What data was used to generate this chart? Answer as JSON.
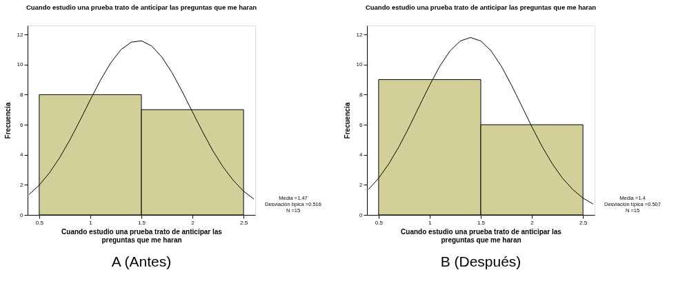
{
  "chart_data": [
    {
      "type": "histogram",
      "title": "Cuando estudio una prueba trato de anticipar las preguntas que me haran",
      "xlabel": "Cuando estudio una prueba trato de anticipar las\npreguntas que me haran",
      "ylabel": "Frecuencia",
      "bins": [
        0.5,
        1.5,
        2.5
      ],
      "series": [
        {
          "color": "#d3cf99",
          "values": [
            8,
            7
          ]
        },
        {
          "type": "line",
          "color": "#000000",
          "x": [
            0.4,
            0.5,
            0.6,
            0.7,
            0.8,
            0.9,
            1.0,
            1.1,
            1.2,
            1.3,
            1.4,
            1.5,
            1.6,
            1.7,
            1.8,
            1.9,
            2.0,
            2.1,
            2.2,
            2.3,
            2.4,
            2.5,
            2.6
          ],
          "values": [
            1.35,
            1.98,
            2.8,
            3.81,
            4.99,
            6.3,
            7.66,
            8.97,
            10.12,
            10.99,
            11.49,
            11.58,
            11.24,
            10.5,
            9.46,
            8.2,
            6.85,
            5.51,
            4.26,
            3.18,
            2.29,
            1.58,
            1.05
          ]
        }
      ],
      "xlim": [
        0.386,
        2.614
      ],
      "xticks": [
        0.5,
        1,
        1.5,
        2,
        2.5
      ],
      "ylim": [
        0,
        12.6
      ],
      "yticks": [
        0,
        2,
        4,
        6,
        8,
        10,
        12
      ],
      "annotations": [
        "Media =1.47",
        "Desviación típica =0.516",
        "N =15",
        "A (Antes)"
      ]
    },
    {
      "type": "histogram",
      "title": "Cuando estudio una prueba trato de anticipar las preguntas que me haran",
      "xlabel": "Cuando estudio una prueba trato de anticipar las\npreguntas que me haran",
      "ylabel": "Frecuencia",
      "bins": [
        0.5,
        1.5,
        2.5
      ],
      "series": [
        {
          "color": "#d3cf99",
          "values": [
            9,
            6
          ]
        },
        {
          "type": "line",
          "color": "#000000",
          "x": [
            0.4,
            0.5,
            0.6,
            0.7,
            0.8,
            0.9,
            1.0,
            1.1,
            1.2,
            1.3,
            1.4,
            1.5,
            1.6,
            1.7,
            1.8,
            1.9,
            2.0,
            2.1,
            2.2,
            2.3,
            2.4,
            2.5,
            2.6
          ],
          "values": [
            1.69,
            2.44,
            3.4,
            4.55,
            5.86,
            7.26,
            8.64,
            9.91,
            10.92,
            11.57,
            11.8,
            11.57,
            10.92,
            9.91,
            8.64,
            7.26,
            5.86,
            4.55,
            3.4,
            2.44,
            1.69,
            1.12,
            0.72
          ]
        }
      ],
      "xlim": [
        0.386,
        2.614
      ],
      "xticks": [
        0.5,
        1,
        1.5,
        2,
        2.5
      ],
      "ylim": [
        0,
        12.6
      ],
      "yticks": [
        0,
        2,
        4,
        6,
        8,
        10,
        12
      ],
      "annotations": [
        "Media =1.4",
        "Desviación típica =0.507",
        "N =15",
        "B (Después)"
      ]
    }
  ]
}
